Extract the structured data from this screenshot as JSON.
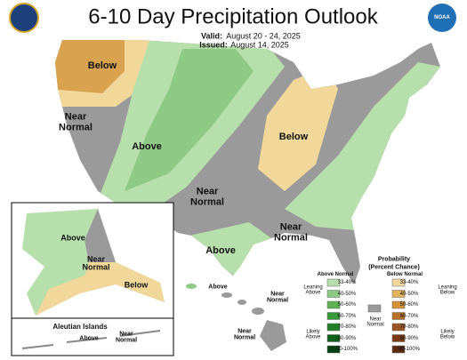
{
  "header": {
    "title": "6-10 Day Precipitation Outlook",
    "valid_label": "Valid:",
    "valid": "August 20 - 24, 2025",
    "issued_label": "Issued:",
    "issued": "August 14, 2025",
    "noaa_logo": "NOAA"
  },
  "conus": {
    "labels": [
      "Below",
      "Near Normal",
      "Above",
      "Below",
      "Near Normal",
      "Near Normal",
      "Above"
    ]
  },
  "alaska": {
    "labels": [
      "Above",
      "Near Normal",
      "Below"
    ]
  },
  "aleutians": {
    "title": "Aleutian Islands",
    "labels": [
      "Above",
      "Near Normal"
    ]
  },
  "hawaii": {
    "labels": [
      "Above",
      "Near Normal",
      "Near Normal"
    ]
  },
  "legend": {
    "title": "Probability",
    "subtitle": "(Percent Chance)",
    "above_header": "Above Normal",
    "below_header": "Below Normal",
    "leaning_above": "Leaning Above",
    "likely_above": "Likely Above",
    "near_normal": "Near Normal",
    "leaning_below": "Leaning Below",
    "likely_below": "Likely Below",
    "near_normal_color": "#9a9a9a",
    "above": [
      {
        "label": "33-40%",
        "color": "#b6dfab"
      },
      {
        "label": "40-50%",
        "color": "#8ec985"
      },
      {
        "label": "50-60%",
        "color": "#5fb253"
      },
      {
        "label": "60-70%",
        "color": "#389a36"
      },
      {
        "label": "70-80%",
        "color": "#217f26"
      },
      {
        "label": "80-90%",
        "color": "#0e5f1a"
      },
      {
        "label": "90-100%",
        "color": "#054013"
      }
    ],
    "below": [
      {
        "label": "33-40%",
        "color": "#f1d89a"
      },
      {
        "label": "40-50%",
        "color": "#e2b35d"
      },
      {
        "label": "50-60%",
        "color": "#d39236"
      },
      {
        "label": "60-70%",
        "color": "#b86f27"
      },
      {
        "label": "70-80%",
        "color": "#9c5423"
      },
      {
        "label": "80-90%",
        "color": "#7a3c18"
      },
      {
        "label": "90-100%",
        "color": "#5a2a10"
      }
    ]
  }
}
